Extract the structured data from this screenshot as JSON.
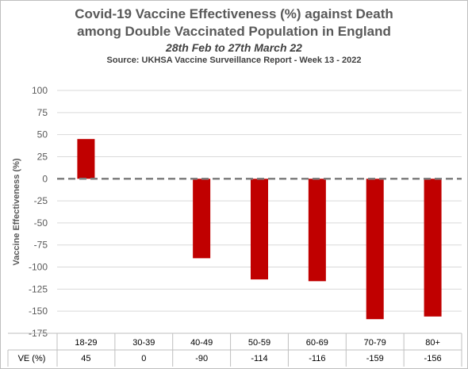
{
  "chart_data": {
    "type": "bar",
    "title": "Covid-19 Vaccine Effectiveness (%) against Death",
    "title_line2": "among Double Vaccinated Population in England",
    "subtitle": "28th Feb to 27th March 22",
    "source": "Source: UKHSA Vaccine Surveillance Report - Week 13 - 2022",
    "ylabel": "Vaccine Effectiveness (%)",
    "ylim": [
      -175,
      100
    ],
    "yticks": [
      100,
      75,
      50,
      25,
      0,
      -25,
      -50,
      -75,
      -100,
      -125,
      -150,
      -175
    ],
    "categories": [
      "18-29",
      "30-39",
      "40-49",
      "50-59",
      "60-69",
      "70-79",
      "80+"
    ],
    "values": [
      45,
      0,
      -90,
      -114,
      -116,
      -159,
      -156
    ],
    "table_row_label": "VE (%)",
    "table_values": [
      "45",
      "0",
      "-90",
      "-114",
      "-116",
      "-159",
      "-156"
    ],
    "bar_color": "#c00000",
    "zero_line_style": "dashed",
    "grid": true,
    "legend": "none"
  }
}
